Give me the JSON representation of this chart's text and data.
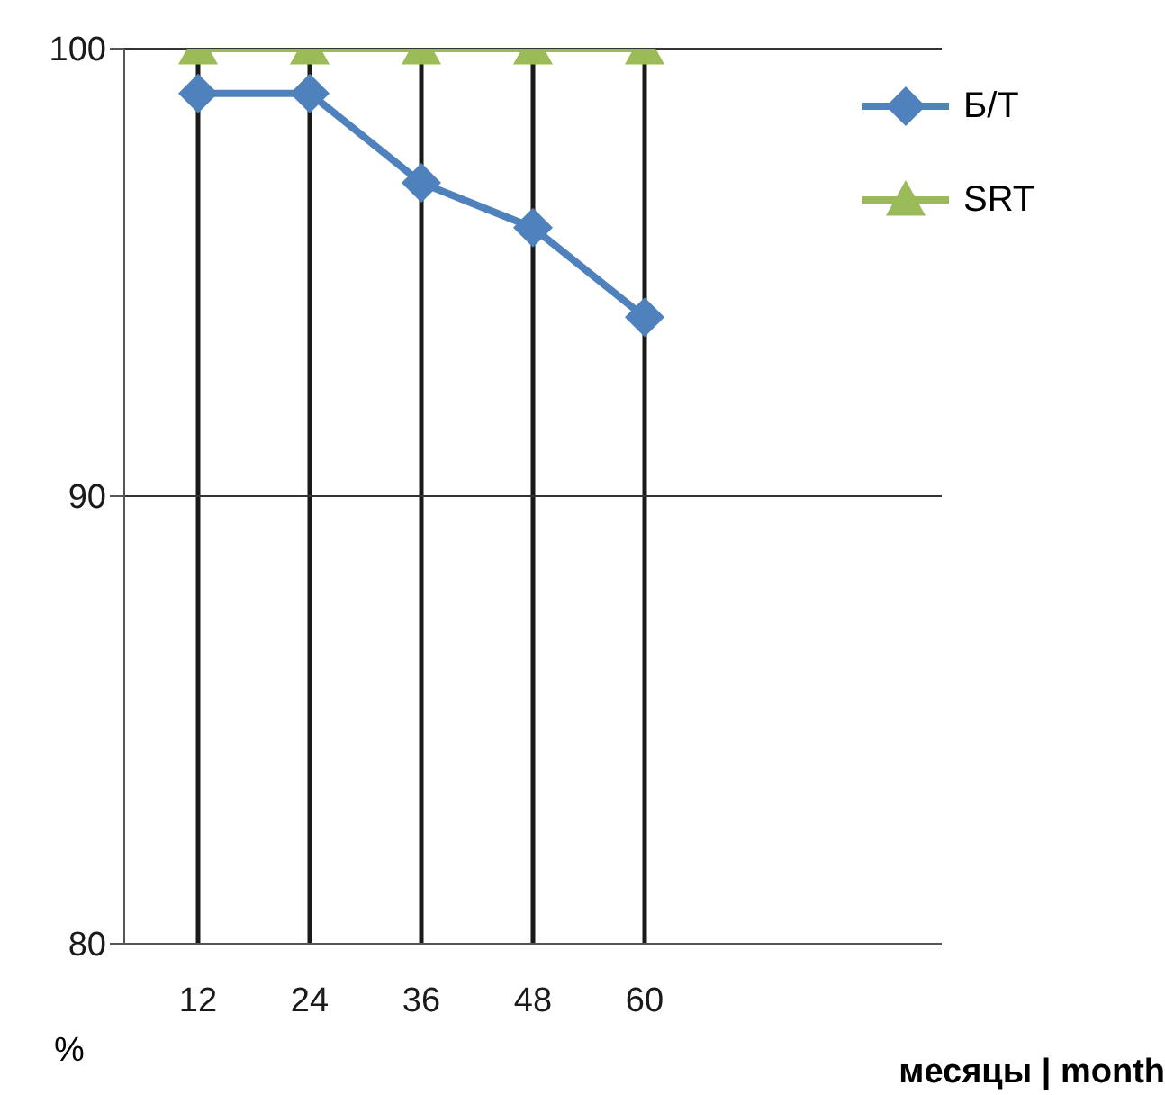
{
  "chart_data": {
    "type": "line",
    "xlabel": "месяцы | month",
    "ylabel": "%",
    "categories": [
      "12",
      "24",
      "36",
      "48",
      "60",
      null,
      null
    ],
    "series": [
      {
        "name": "Б/Т",
        "color": "#4f81bd",
        "marker": "diamond",
        "values": [
          99,
          99,
          97,
          96,
          94,
          null,
          null
        ]
      },
      {
        "name": "SRT",
        "color": "#9bbb59",
        "marker": "triangle",
        "values": [
          100,
          100,
          100,
          100,
          100,
          null,
          null
        ]
      }
    ],
    "ylim": [
      80,
      100
    ],
    "yticks": [
      80,
      90,
      100
    ],
    "legend": "top right",
    "ref_lines": [
      {
        "axis": "x",
        "value": "12",
        "color": "#1a1a1a"
      },
      {
        "axis": "x",
        "value": "24",
        "color": "#1a1a1a"
      },
      {
        "axis": "x",
        "value": "36",
        "color": "#1a1a1a"
      },
      {
        "axis": "x",
        "value": "48",
        "color": "#1a1a1a"
      },
      {
        "axis": "x",
        "value": "60",
        "color": "#1a1a1a"
      },
      {
        "axis": "y",
        "value": 90,
        "color": "#333333"
      },
      {
        "axis": "y",
        "value": 100,
        "color": "#333333"
      }
    ]
  }
}
